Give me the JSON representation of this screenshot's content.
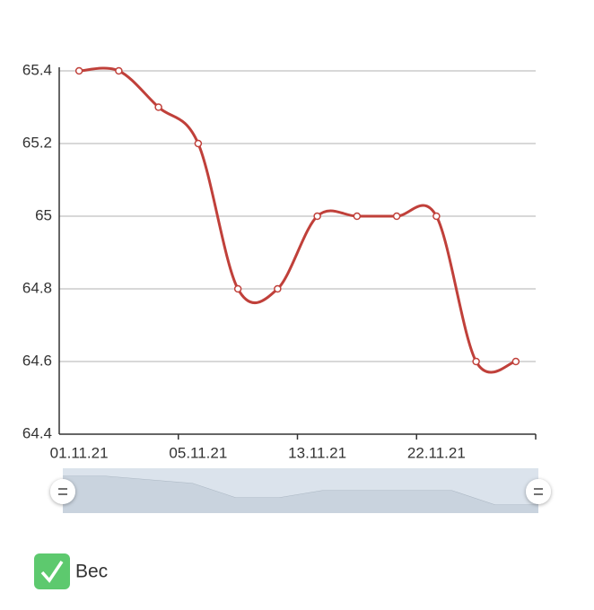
{
  "chart_data": {
    "type": "line",
    "categories": [
      "01.11.21",
      null,
      null,
      "05.11.21",
      null,
      null,
      "13.11.21",
      null,
      null,
      "22.11.21",
      null,
      null
    ],
    "series": [
      {
        "name": "Вес",
        "color": "#c0403a",
        "values": [
          65.4,
          65.4,
          65.3,
          65.2,
          64.8,
          64.8,
          65.0,
          65.0,
          65.0,
          65.0,
          64.6,
          64.6
        ]
      }
    ],
    "ylim": [
      64.4,
      65.4
    ],
    "yticks": [
      64.4,
      64.6,
      64.8,
      65,
      65.2,
      65.4
    ],
    "grid": true
  }
}
